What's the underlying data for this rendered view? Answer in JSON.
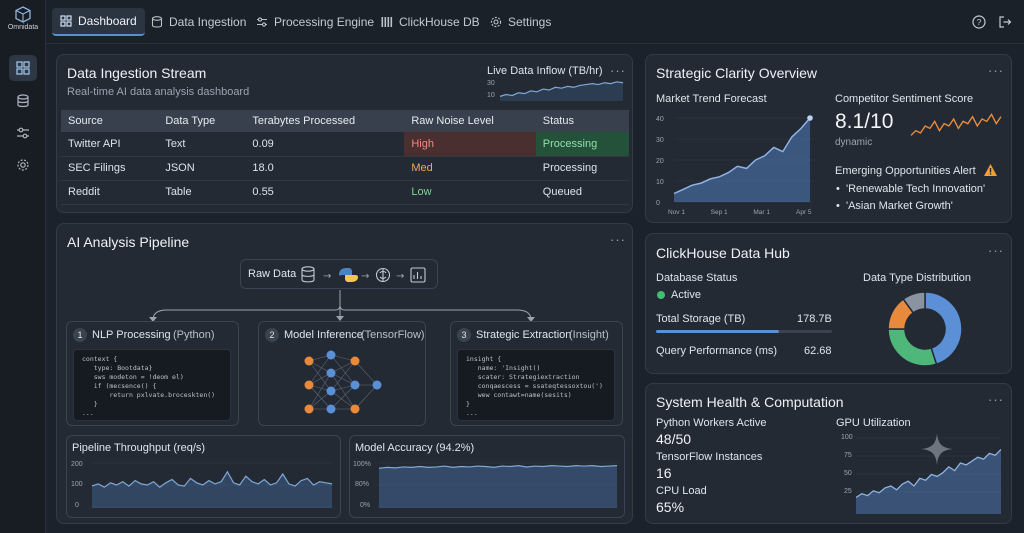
{
  "app": {
    "logo_text": "Omnidata"
  },
  "nav": {
    "tabs": [
      {
        "label": "Dashboard",
        "icon": "grid-icon"
      },
      {
        "label": "Data Ingestion",
        "icon": "database-icon"
      },
      {
        "label": "Processing Engine",
        "icon": "sliders-icon"
      },
      {
        "label": "ClickHouse DB",
        "icon": "columns-icon"
      },
      {
        "label": "Settings",
        "icon": "gear-icon"
      }
    ]
  },
  "ingestion": {
    "title": "Data Ingestion Stream",
    "subtitle": "Real-time AI data analysis dashboard",
    "inflow_label": "Live Data Inflow (TB/hr)",
    "inflow_ticks": [
      "30",
      "10"
    ],
    "inflow_series": [
      12,
      14,
      13,
      16,
      15,
      18,
      17,
      20,
      19,
      22,
      21,
      23,
      22,
      24,
      25,
      26,
      25,
      27,
      26,
      28,
      27
    ],
    "columns": [
      "Source",
      "Data Type",
      "Terabytes Processed",
      "Raw Noise Level",
      "Status"
    ],
    "rows": [
      {
        "source": "Twitter API",
        "type": "Text",
        "tb": "0.09",
        "noise": "High",
        "status": "Processing"
      },
      {
        "source": "SEC Filings",
        "type": "JSON",
        "tb": "18.0",
        "noise": "Med",
        "status": "Processing"
      },
      {
        "source": "Reddit",
        "type": "Table",
        "tb": "0.55",
        "noise": "Low",
        "status": "Queued"
      }
    ]
  },
  "pipeline": {
    "title": "AI Analysis Pipeline",
    "flow_label": "Raw Data",
    "stages": [
      {
        "num": "1",
        "name": "NLP Processing",
        "tech": "(Python)"
      },
      {
        "num": "2",
        "name": "Model Inference",
        "tech": "(TensorFlow)"
      },
      {
        "num": "3",
        "name": "Strategic Extraction",
        "tech": "(Insight)"
      }
    ],
    "code1": "context {\n   type: Bootdata}\n   sws modeton = !deom el)\n   if (mecsence() {\n       return pxlvate.broceskten()\n   }\n...",
    "code2": "insight {\n   name: 'Insight()\n   scater: Strategiextraction\n   conqaescess = ssateqtessoxtou(')\n   wew contawt=name(sesits)\n}\n...",
    "throughput_label": "Pipeline Throughput (req/s)",
    "throughput_ticks": [
      "200",
      "100",
      "0"
    ],
    "throughput_series": [
      95,
      105,
      90,
      110,
      100,
      115,
      95,
      120,
      105,
      100,
      115,
      90,
      110,
      125,
      100,
      95,
      130,
      110,
      100,
      120,
      105,
      115,
      160,
      110,
      100,
      140,
      115,
      105,
      125,
      100,
      110,
      150,
      105,
      95,
      120,
      130,
      100,
      115,
      110,
      105
    ],
    "accuracy_label": "Model Accuracy (94.2%)",
    "accuracy_ticks": [
      "100%",
      "80%",
      "0%"
    ],
    "accuracy_series": [
      88,
      90,
      89,
      91,
      90,
      92,
      90,
      91,
      93,
      90,
      92,
      91,
      93,
      92,
      90,
      93,
      92,
      94,
      91,
      93,
      92,
      94,
      93,
      92,
      94,
      93,
      94,
      92,
      93,
      94
    ]
  },
  "strategic": {
    "title": "Strategic Clarity Overview",
    "forecast_label": "Market Trend Forecast",
    "forecast": {
      "type": "area",
      "categories": [
        "Nov 1",
        "Sep 1",
        "Mar 1",
        "Apr 5"
      ],
      "ylim": [
        0,
        40
      ],
      "yticks": [
        "40",
        "30",
        "20",
        "10",
        "0"
      ],
      "values": [
        4,
        6,
        8,
        9,
        11,
        12,
        14,
        17,
        16,
        20,
        22,
        26,
        24,
        31,
        35,
        40
      ]
    },
    "sentiment_label": "Competitor Sentiment Score",
    "sentiment_value": "8.1/10",
    "sentiment_sub": "dynamic",
    "sentiment_series": [
      4,
      6,
      5,
      8,
      7,
      10,
      6,
      9,
      8,
      11,
      7,
      10,
      9,
      12,
      8,
      11,
      10,
      13,
      9,
      12
    ],
    "alert_title": "Emerging Opportunities Alert",
    "alerts": [
      "'Renewable Tech Innovation'",
      "'Asian Market Growth'"
    ]
  },
  "clickhouse": {
    "title": "ClickHouse Data Hub",
    "db_status_label": "Database Status",
    "db_status": "Active",
    "storage_label": "Total Storage (TB)",
    "storage_value": "178.7B",
    "storage_fill": 0.7,
    "query_label": "Query Performance (ms)",
    "query_value": "62.68",
    "dist_label": "Data Type Distribution",
    "distribution": [
      {
        "value": 45,
        "color": "#5b8fd6"
      },
      {
        "value": 30,
        "color": "#4fb77a"
      },
      {
        "value": 15,
        "color": "#e88a3c"
      },
      {
        "value": 10,
        "color": "#8a94a0"
      }
    ]
  },
  "health": {
    "title": "System Health & Computation",
    "python_label": "Python Workers Active",
    "python_value": "48/50",
    "tf_label": "TensorFlow Instances",
    "tf_value": "16",
    "cpu_label": "CPU Load",
    "cpu_value": "65%",
    "gpu_label": "GPU Utilization",
    "gpu_ticks": [
      "100",
      "75",
      "50",
      "25"
    ],
    "gpu_series": [
      38,
      42,
      40,
      45,
      43,
      48,
      50,
      46,
      52,
      55,
      50,
      58,
      56,
      62,
      60,
      64,
      70,
      66,
      74,
      72,
      76,
      80,
      78,
      84,
      82,
      88
    ]
  }
}
